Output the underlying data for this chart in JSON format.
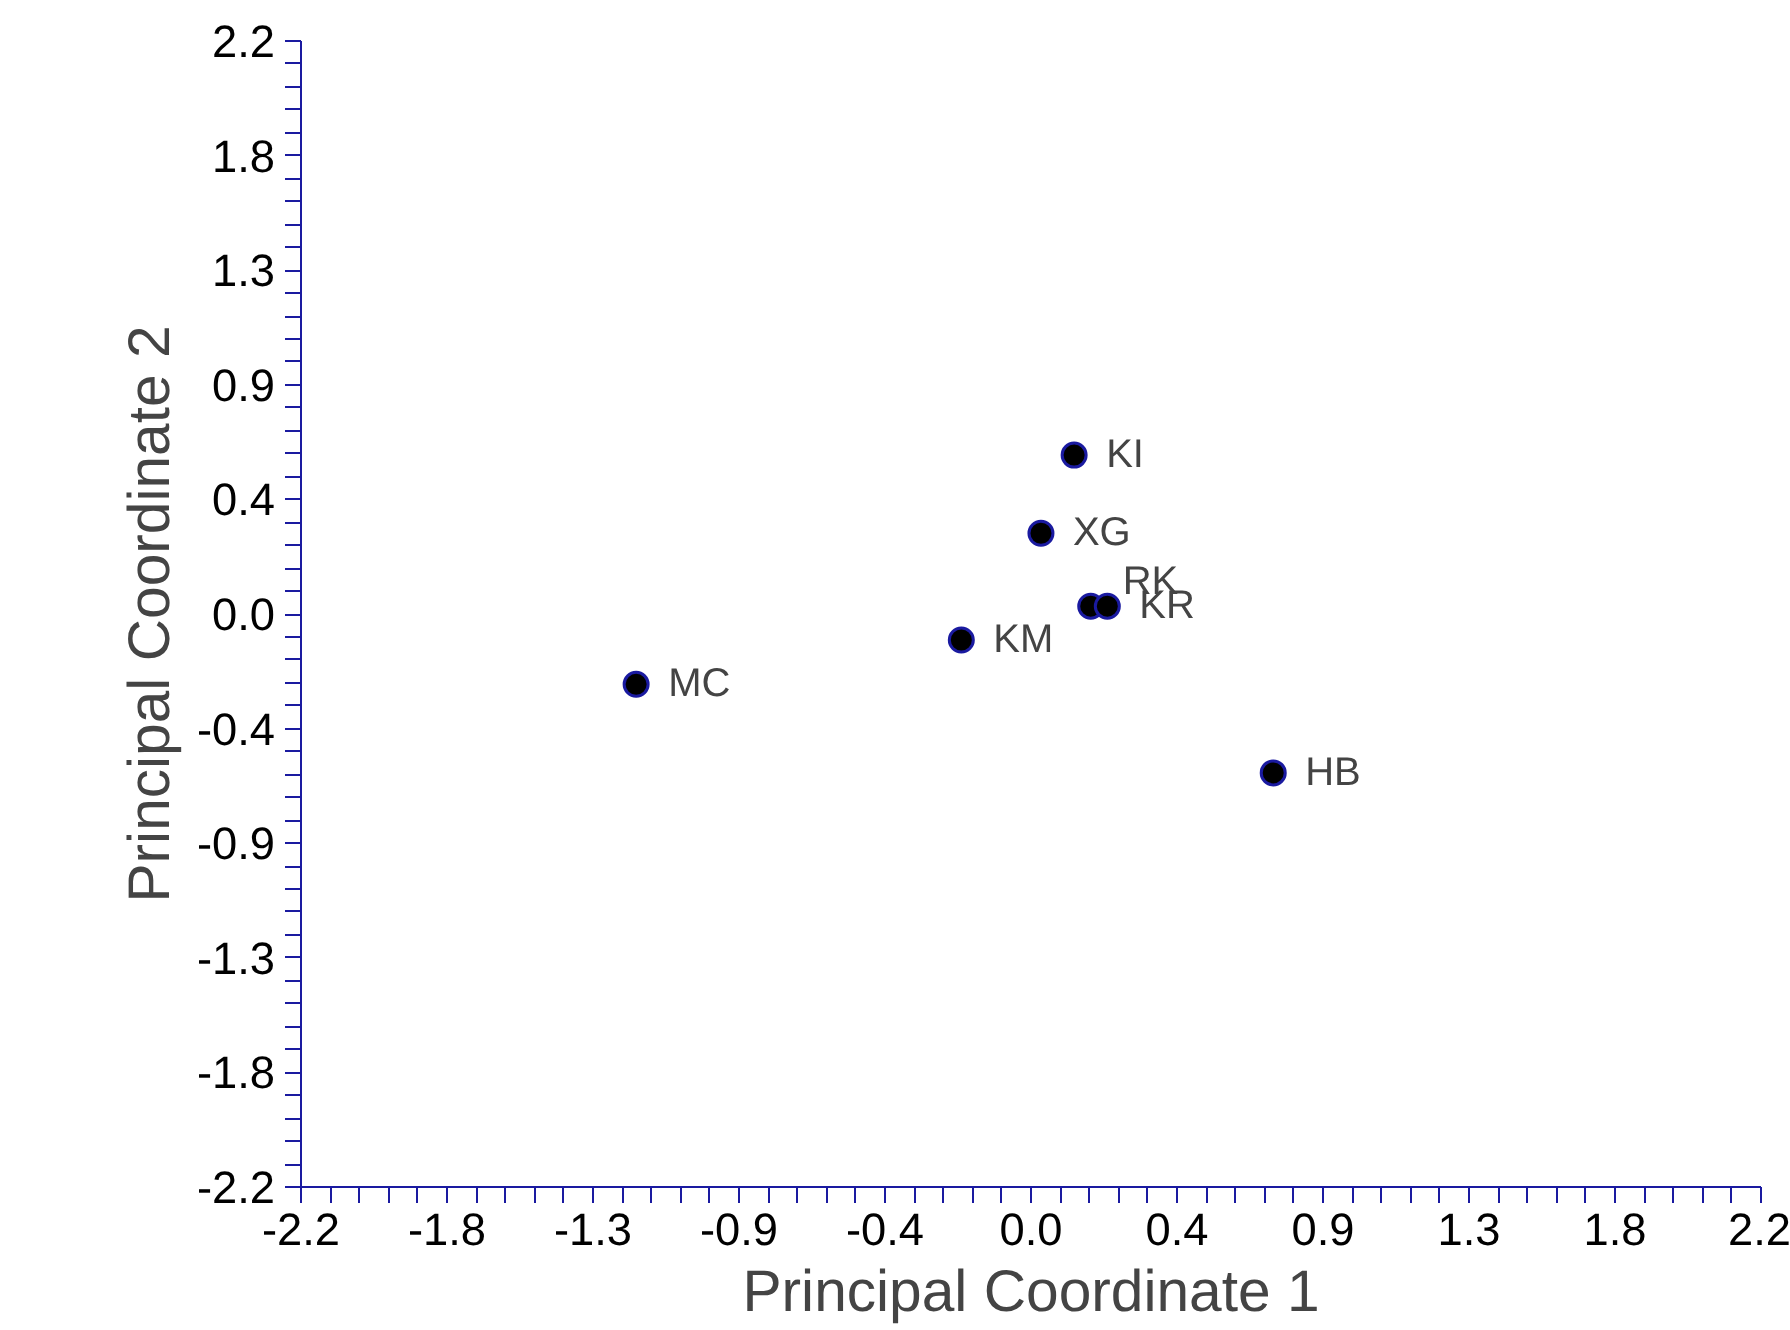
{
  "chart_data": {
    "type": "scatter",
    "xlabel": "Principal Coordinate 1",
    "ylabel": "Principal Coordinate 2",
    "x": [
      0.13,
      0.03,
      0.18,
      0.23,
      -0.21,
      -1.19,
      0.73
    ],
    "series": [
      {
        "color": "#000000",
        "values": [
          0.61,
          0.31,
          0.03,
          0.03,
          -0.1,
          -0.27,
          -0.61
        ]
      }
    ],
    "marker": "circle",
    "grid": false,
    "xlim": [
      -2.2,
      2.2
    ],
    "ylim": [
      -2.2,
      2.2
    ],
    "xticks": [
      -2.2,
      {
        "value": -1.76,
        "label": "-1.8"
      },
      {
        "value": -1.32,
        "label": "-1.3"
      },
      {
        "value": -0.88,
        "label": "-0.9"
      },
      {
        "value": -0.44,
        "label": "-0.4"
      },
      {
        "value": 0,
        "label": "0.0"
      },
      {
        "value": 0.44,
        "label": "0.4"
      },
      {
        "value": 0.88,
        "label": "0.9"
      },
      {
        "value": 1.32,
        "label": "1.3"
      },
      {
        "value": 1.76,
        "label": "1.8"
      },
      2.2
    ],
    "yticks": [
      -2.2,
      {
        "value": -1.76,
        "label": "-1.8"
      },
      {
        "value": -1.32,
        "label": "-1.3"
      },
      {
        "value": -0.88,
        "label": "-0.9"
      },
      {
        "value": -0.44,
        "label": "-0.4"
      },
      {
        "value": 0,
        "label": "0.0"
      },
      {
        "value": 0.44,
        "label": "0.4"
      },
      {
        "value": 0.88,
        "label": "0.9"
      },
      {
        "value": 1.32,
        "label": "1.3"
      },
      {
        "value": 1.76,
        "label": "1.8"
      },
      2.2
    ],
    "annotations": [
      {
        "text": "KI",
        "x": 0.13,
        "y": 0.61
      },
      {
        "text": "XG",
        "x": 0.03,
        "y": 0.31
      },
      {
        "text": "RK",
        "x": 0.18,
        "y": 0.03
      },
      {
        "text": "KR",
        "x": 0.23,
        "y": 0.03
      },
      {
        "text": "KM",
        "x": -0.21,
        "y": -0.1
      },
      {
        "text": "MC",
        "x": -1.19,
        "y": -0.27
      },
      {
        "text": "HB",
        "x": 0.73,
        "y": -0.61
      }
    ]
  }
}
